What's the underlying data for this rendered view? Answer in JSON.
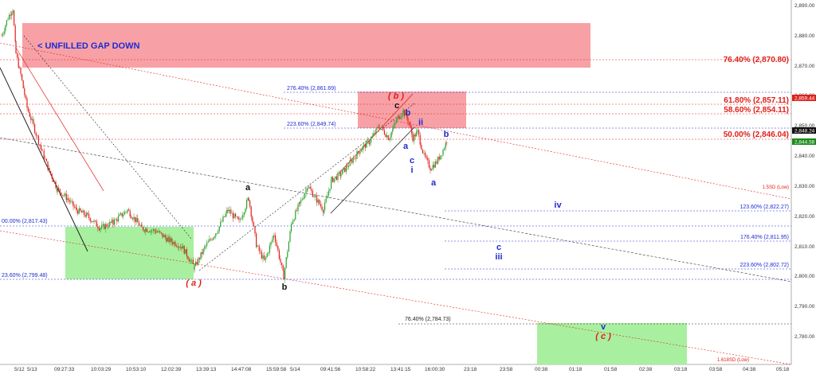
{
  "chart_data": {
    "type": "candlestick",
    "y_ticks": [
      "2,890.00",
      "2,880.00",
      "2,870.00",
      "2,860.00",
      "2,850.00",
      "2,840.00",
      "2,830.00",
      "2,820.00",
      "2,810.00",
      "2,800.00",
      "2,790.00",
      "2,780.00"
    ],
    "y_range": [
      2774,
      2893
    ],
    "x_ticks": [
      "5/12",
      "5/13",
      "09:27:33",
      "10:03:29",
      "10:53:10",
      "12:02:39",
      "13:39:13",
      "14:47:08",
      "15:59:58",
      "5/14",
      "09:41:56",
      "10:58:22",
      "13:41:15",
      "16:00:30",
      "23:18",
      "23:58",
      "00:38",
      "01:18",
      "01:58",
      "02:38",
      "03:18",
      "03:58",
      "04:38",
      "05:18"
    ],
    "price_labels": [
      {
        "text": "2,859.44",
        "y": 2859.44,
        "color": "#e0201a"
      },
      {
        "text": "2,848.24",
        "y": 2848.24,
        "color": "#111111"
      },
      {
        "text": "2,844.58",
        "y": 2844.58,
        "color": "#1a8a1a"
      }
    ],
    "gap_label": "< UNFILLED GAP DOWN",
    "fib_levels_red": [
      {
        "text": "76.40% (2,870.80)",
        "y": 2870.8
      },
      {
        "text": "61.80% (2,857.11)",
        "y": 2857.11
      },
      {
        "text": "58.60% (2,854.11)",
        "y": 2854.11
      },
      {
        "text": "50.00% (2,846.04)",
        "y": 2846.04
      }
    ],
    "fib_levels_blue": [
      {
        "text": "276.40% (2,861.69)",
        "y": 2861.69
      },
      {
        "text": "223.60% (2,849.74)",
        "y": 2849.74
      },
      {
        "text": "123.60% (2,822.27)",
        "y": 2822.27
      },
      {
        "text": "176.40% (2,811.95)",
        "y": 2811.95
      },
      {
        "text": "223.60% (2,802.72)",
        "y": 2802.72
      },
      {
        "text": "00.00% (2,817.43)",
        "y": 2817.43
      },
      {
        "text": "23.60% (2,799.48)",
        "y": 2799.48
      }
    ],
    "fib_levels_black": [
      {
        "text": "76.40% (2,784.73)",
        "y": 2784.73
      }
    ],
    "band_labels": [
      {
        "text": "1.5SD (Low)",
        "color": "#e0201a"
      },
      {
        "text": "1.618SD (Low)",
        "color": "#e0201a"
      }
    ],
    "wave_labels": [
      {
        "text": "( b )",
        "color": "#e0201a"
      },
      {
        "text": "c",
        "color": "#111111"
      },
      {
        "text": "b",
        "color": "#1f2bd0"
      },
      {
        "text": "ii",
        "color": "#1f2bd0"
      },
      {
        "text": "a",
        "color": "#1f2bd0"
      },
      {
        "text": "b",
        "color": "#1f2bd0"
      },
      {
        "text": "c",
        "color": "#1f2bd0"
      },
      {
        "text": "i",
        "color": "#1f2bd0"
      },
      {
        "text": "a",
        "color": "#1f2bd0"
      },
      {
        "text": "a",
        "color": "#111111"
      },
      {
        "text": "( a )",
        "color": "#e0201a"
      },
      {
        "text": "b",
        "color": "#111111"
      },
      {
        "text": "iv",
        "color": "#1f2bd0"
      },
      {
        "text": "c",
        "color": "#1f2bd0"
      },
      {
        "text": "iii",
        "color": "#1f2bd0"
      },
      {
        "text": "v",
        "color": "#1f2bd0"
      },
      {
        "text": "( c )",
        "color": "#e0201a"
      }
    ],
    "price_path": [
      [
        2,
        2880
      ],
      [
        10,
        2886
      ],
      [
        16,
        2889
      ],
      [
        20,
        2874
      ],
      [
        26,
        2867
      ],
      [
        34,
        2856
      ],
      [
        42,
        2850
      ],
      [
        52,
        2842
      ],
      [
        62,
        2835
      ],
      [
        72,
        2829
      ],
      [
        84,
        2826
      ],
      [
        96,
        2822
      ],
      [
        110,
        2820
      ],
      [
        126,
        2816
      ],
      [
        142,
        2818
      ],
      [
        160,
        2822
      ],
      [
        178,
        2816
      ],
      [
        196,
        2815
      ],
      [
        212,
        2812
      ],
      [
        228,
        2810
      ],
      [
        244,
        2803
      ],
      [
        258,
        2810
      ],
      [
        272,
        2815
      ],
      [
        286,
        2822
      ],
      [
        300,
        2818
      ],
      [
        312,
        2826
      ],
      [
        322,
        2810
      ],
      [
        332,
        2805
      ],
      [
        344,
        2814
      ],
      [
        356,
        2800
      ],
      [
        366,
        2818
      ],
      [
        376,
        2824
      ],
      [
        386,
        2830
      ],
      [
        396,
        2826
      ],
      [
        406,
        2822
      ],
      [
        416,
        2832
      ],
      [
        428,
        2834
      ],
      [
        440,
        2838
      ],
      [
        452,
        2842
      ],
      [
        464,
        2845
      ],
      [
        476,
        2850
      ],
      [
        488,
        2846
      ],
      [
        498,
        2852
      ],
      [
        506,
        2855
      ],
      [
        512,
        2852
      ],
      [
        518,
        2846
      ],
      [
        524,
        2848
      ],
      [
        532,
        2840
      ],
      [
        540,
        2836
      ],
      [
        548,
        2838
      ],
      [
        556,
        2842
      ],
      [
        562,
        2846
      ]
    ],
    "colors": {
      "grid_red": "#e0201a",
      "grid_blue": "#1f2bd0",
      "gap_fill": "#f7a1a6",
      "target_fill": "#a8f0a0",
      "bull_candle": "#2aa02a",
      "bear_candle": "#e0201a"
    }
  }
}
